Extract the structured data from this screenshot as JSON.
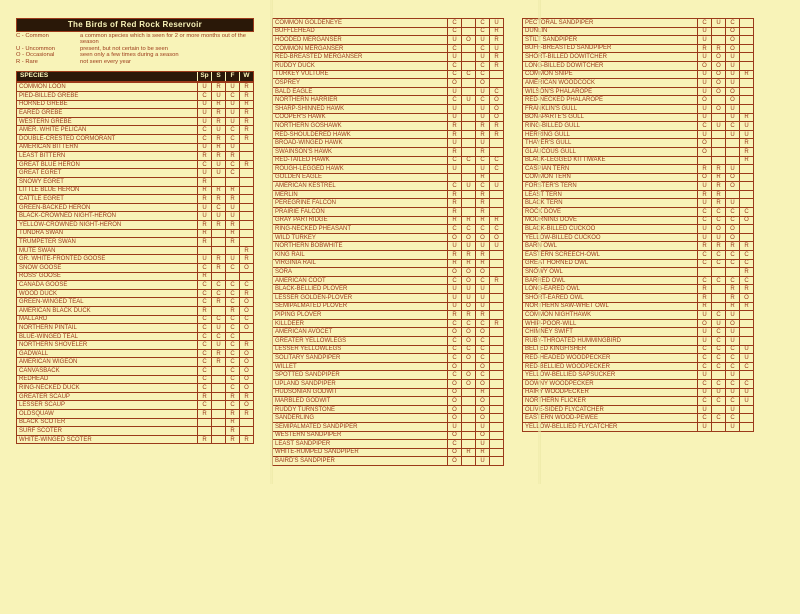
{
  "title": "The Birds of Red Rock Reservoir",
  "legend": [
    {
      "key": "C - Common",
      "def": "a common species which is seen for 2 or more months out of the season"
    },
    {
      "key": "U - Uncommon",
      "def": "present, but not certain to be seen"
    },
    {
      "key": "O - Occasional",
      "def": "seen only a few times during a season"
    },
    {
      "key": "R - Rare",
      "def": "not seen every year"
    }
  ],
  "headers": [
    "SPECIES",
    "Sp",
    "S",
    "F",
    "W"
  ],
  "col1": [
    [
      "COMMON LOON",
      "U",
      "R",
      "U",
      "R"
    ],
    [
      "PIED-BILLED GREBE",
      "C",
      "U",
      "C",
      "R"
    ],
    [
      "HORNED GREBE",
      "U",
      "R",
      "U",
      "R"
    ],
    [
      "EARED GREBE",
      "U",
      "R",
      "U",
      "R"
    ],
    [
      "WESTERN GREBE",
      "U",
      "R",
      "U",
      "R"
    ],
    [
      "AMER. WHITE PELICAN",
      "C",
      "U",
      "C",
      "R"
    ],
    [
      "DOUBLE-CRESTED CORMORANT",
      "C",
      "R",
      "C",
      "R"
    ],
    [
      "AMERICAN BITTERN",
      "U",
      "R",
      "U",
      ""
    ],
    [
      "LEAST BITTERN",
      "R",
      "R",
      "R",
      ""
    ],
    [
      "GREAT BLUE HERON",
      "C",
      "U",
      "C",
      "R"
    ],
    [
      "GREAT EGRET",
      "U",
      "U",
      "C",
      ""
    ],
    [
      "SNOWY EGRET",
      "R",
      "",
      "",
      ""
    ],
    [
      "LITTLE BLUE HERON",
      "R",
      "R",
      "R",
      ""
    ],
    [
      "CATTLE EGRET",
      "R",
      "R",
      "R",
      ""
    ],
    [
      "GREEN-BACKED HERON",
      "U",
      "C",
      "U",
      ""
    ],
    [
      "BLACK-CROWNED NIGHT-HERON",
      "U",
      "U",
      "U",
      ""
    ],
    [
      "YELLOW-CROWNED NIGHT-HERON",
      "R",
      "R",
      "R",
      ""
    ],
    [
      "TUNDRA SWAN",
      "R",
      "",
      "R",
      ""
    ],
    [
      "TRUMPETER SWAN",
      "R",
      "",
      "R",
      ""
    ],
    [
      "MUTE SWAN",
      "",
      "",
      "",
      "R"
    ],
    [
      "GR. WHITE-FRONTED GOOSE",
      "U",
      "R",
      "U",
      "R"
    ],
    [
      "SNOW GOOSE",
      "C",
      "R",
      "C",
      "O"
    ],
    [
      "ROSS' GOOSE",
      "R",
      "",
      "",
      ""
    ],
    [
      "CANADA GOOSE",
      "C",
      "C",
      "C",
      "C"
    ],
    [
      "WOOD DUCK",
      "C",
      "C",
      "C",
      "R"
    ],
    [
      "GREEN-WINGED TEAL",
      "C",
      "R",
      "C",
      "O"
    ],
    [
      "AMERICAN BLACK DUCK",
      "R",
      "",
      "R",
      "O"
    ],
    [
      "MALLARD",
      "C",
      "C",
      "C",
      "C"
    ],
    [
      "NORTHERN PINTAIL",
      "C",
      "U",
      "C",
      "O"
    ],
    [
      "BLUE-WINGED TEAL",
      "C",
      "C",
      "C",
      ""
    ],
    [
      "NORTHERN SHOVELER",
      "C",
      "U",
      "C",
      "R"
    ],
    [
      "GADWALL",
      "C",
      "R",
      "C",
      "O"
    ],
    [
      "AMERICAN WIGEON",
      "C",
      "R",
      "C",
      "O"
    ],
    [
      "CANVASBACK",
      "C",
      "",
      "C",
      "O"
    ],
    [
      "REDHEAD",
      "C",
      "",
      "C",
      "O"
    ],
    [
      "RING-NECKED DUCK",
      "C",
      "",
      "C",
      "O"
    ],
    [
      "GREATER SCAUP",
      "R",
      "",
      "R",
      "R"
    ],
    [
      "LESSER SCAUP",
      "C",
      "",
      "C",
      "O"
    ],
    [
      "OLDSQUAW",
      "R",
      "",
      "R",
      "R"
    ],
    [
      "BLACK SCOTER",
      "",
      "",
      "R",
      ""
    ],
    [
      "SURF SCOTER",
      "",
      "",
      "R",
      ""
    ],
    [
      "WHITE-WINGED SCOTER",
      "R",
      "",
      "R",
      "R"
    ]
  ],
  "col2": [
    [
      "COMMON GOLDENEYE",
      "C",
      "",
      "C",
      "U"
    ],
    [
      "BUFFLEHEAD",
      "C",
      "",
      "C",
      "R"
    ],
    [
      "HOODED MERGANSER",
      "U",
      "O",
      "U",
      "R"
    ],
    [
      "COMMON MERGANSER",
      "C",
      "",
      "C",
      "U"
    ],
    [
      "RED-BREASTED MERGANSER",
      "U",
      "",
      "U",
      "R"
    ],
    [
      "RUDDY DUCK",
      "C",
      "",
      "C",
      "R"
    ],
    [
      "TURKEY VULTURE",
      "C",
      "C",
      "C",
      ""
    ],
    [
      "OSPREY",
      "O",
      "",
      "O",
      ""
    ],
    [
      "BALD EAGLE",
      "U",
      "",
      "U",
      "C"
    ],
    [
      "NORTHERN HARRIER",
      "C",
      "U",
      "C",
      "O"
    ],
    [
      "SHARP-SHINNED HAWK",
      "U",
      "",
      "U",
      "O"
    ],
    [
      "COOPER'S HAWK",
      "U",
      "",
      "U",
      "O"
    ],
    [
      "NORTHERN GOSHAWK",
      "R",
      "",
      "R",
      "R"
    ],
    [
      "RED-SHOULDERED HAWK",
      "R",
      "",
      "R",
      "R"
    ],
    [
      "BROAD-WINGED HAWK",
      "U",
      "",
      "U",
      ""
    ],
    [
      "SWAINSON'S HAWK",
      "R",
      "",
      "R",
      ""
    ],
    [
      "RED-TAILED HAWK",
      "C",
      "C",
      "C",
      "C"
    ],
    [
      "ROUGH-LEGGED HAWK",
      "U",
      "",
      "U",
      "C"
    ],
    [
      "GOLDEN EAGLE",
      "",
      "",
      "R",
      ""
    ],
    [
      "AMERICAN KESTREL",
      "C",
      "U",
      "C",
      "U"
    ],
    [
      "MERLIN",
      "R",
      "",
      "R",
      ""
    ],
    [
      "PEREGRINE FALCON",
      "R",
      "",
      "R",
      ""
    ],
    [
      "PRAIRIE FALCON",
      "R",
      "",
      "R",
      ""
    ],
    [
      "GRAY PARTRIDGE",
      "R",
      "R",
      "R",
      "R"
    ],
    [
      "RING-NECKED PHEASANT",
      "C",
      "C",
      "C",
      "C"
    ],
    [
      "WILD TURKEY",
      "O",
      "O",
      "O",
      "O"
    ],
    [
      "NORTHERN BOBWHITE",
      "U",
      "U",
      "U",
      "U"
    ],
    [
      "KING RAIL",
      "R",
      "R",
      "R",
      ""
    ],
    [
      "VIRGINIA RAIL",
      "R",
      "R",
      "R",
      ""
    ],
    [
      "SORA",
      "O",
      "O",
      "O",
      ""
    ],
    [
      "AMERICAN COOT",
      "C",
      "O",
      "C",
      "R"
    ],
    [
      "BLACK-BELLIED PLOVER",
      "U",
      "U",
      "U",
      ""
    ],
    [
      "LESSER GOLDEN-PLOVER",
      "U",
      "U",
      "U",
      ""
    ],
    [
      "SEMIPALMATED PLOVER",
      "U",
      "O",
      "U",
      ""
    ],
    [
      "PIPING PLOVER",
      "R",
      "R",
      "R",
      ""
    ],
    [
      "KILLDEER",
      "C",
      "C",
      "C",
      "R"
    ],
    [
      "AMERICAN AVOCET",
      "O",
      "O",
      "O",
      ""
    ],
    [
      "GREATER YELLOWLEGS",
      "C",
      "O",
      "C",
      ""
    ],
    [
      "LESSER YELLOWLEGS",
      "C",
      "C",
      "C",
      ""
    ],
    [
      "SOLITARY SANDPIPER",
      "C",
      "O",
      "C",
      ""
    ],
    [
      "WILLET",
      "O",
      "",
      "O",
      ""
    ],
    [
      "SPOTTED SANDPIPER",
      "C",
      "O",
      "C",
      ""
    ],
    [
      "UPLAND SANDPIPER",
      "O",
      "O",
      "O",
      ""
    ],
    [
      "HUDSONIAN GODWIT",
      "O",
      "",
      "R",
      ""
    ],
    [
      "MARBLED GODWIT",
      "O",
      "",
      "O",
      ""
    ],
    [
      "RUDDY TURNSTONE",
      "O",
      "",
      "O",
      ""
    ],
    [
      "SANDERLING",
      "O",
      "",
      "O",
      ""
    ],
    [
      "SEMIPALMATED SANDPIPER",
      "U",
      "",
      "U",
      ""
    ],
    [
      "WESTERN SANDPIPER",
      "O",
      "",
      "O",
      ""
    ],
    [
      "LEAST SANDPIPER",
      "C",
      "",
      "U",
      ""
    ],
    [
      "WHITE-RUMPED SANDPIPER",
      "O",
      "R",
      "R",
      ""
    ],
    [
      "BAIRD'S SANDPIPER",
      "O",
      "",
      "U",
      ""
    ]
  ],
  "col3": [
    [
      "PECTORAL SANDPIPER",
      "C",
      "U",
      "C",
      ""
    ],
    [
      "DUNLIN",
      "U",
      "",
      "O",
      ""
    ],
    [
      "STILT SANDPIPER",
      "U",
      "",
      "O",
      ""
    ],
    [
      "BUFF-BREASTED SANDPIPER",
      "R",
      "R",
      "O",
      ""
    ],
    [
      "SHORT-BILLED DOWITCHER",
      "U",
      "O",
      "U",
      ""
    ],
    [
      "LONG-BILLED DOWITCHER",
      "O",
      "O",
      "U",
      ""
    ],
    [
      "COMMON SNIPE",
      "U",
      "O",
      "U",
      "R"
    ],
    [
      "AMERICAN WOODCOCK",
      "U",
      "O",
      "U",
      ""
    ],
    [
      "WILSON'S PHALAROPE",
      "U",
      "O",
      "O",
      ""
    ],
    [
      "RED-NECKED PHALAROPE",
      "O",
      "",
      "O",
      ""
    ],
    [
      "FRANKLIN'S GULL",
      "U",
      "O",
      "U",
      ""
    ],
    [
      "BONAPARTE'S GULL",
      "U",
      "",
      "U",
      "R"
    ],
    [
      "RING-BILLED GULL",
      "C",
      "U",
      "C",
      "U"
    ],
    [
      "HERRING GULL",
      "U",
      "",
      "U",
      "U"
    ],
    [
      "THAYER'S GULL",
      "O",
      "",
      "",
      "R"
    ],
    [
      "GLAUCOUS GULL",
      "O",
      "",
      "",
      "R"
    ],
    [
      "BLACK-LEGGED KITTIWAKE",
      "",
      "",
      "",
      "R"
    ],
    [
      "CASPIAN TERN",
      "R",
      "R",
      "U",
      ""
    ],
    [
      "COMMON TERN",
      "O",
      "R",
      "O",
      ""
    ],
    [
      "FORSTER'S TERN",
      "U",
      "R",
      "O",
      ""
    ],
    [
      "LEAST TERN",
      "R",
      "R",
      "",
      ""
    ],
    [
      "BLACK TERN",
      "U",
      "R",
      "U",
      ""
    ],
    [
      "ROCK DOVE",
      "C",
      "C",
      "C",
      "C"
    ],
    [
      "MOURNING DOVE",
      "C",
      "C",
      "C",
      "O"
    ],
    [
      "BLACK-BILLED CUCKOO",
      "U",
      "O",
      "O",
      ""
    ],
    [
      "YELLOW-BILLED CUCKOO",
      "U",
      "U",
      "O",
      ""
    ],
    [
      "BARN OWL",
      "R",
      "R",
      "R",
      "R"
    ],
    [
      "EASTERN SCREECH-OWL",
      "C",
      "C",
      "C",
      "C"
    ],
    [
      "GREAT HORNED OWL",
      "C",
      "C",
      "C",
      "C"
    ],
    [
      "SNOWY OWL",
      "",
      "",
      "",
      "R"
    ],
    [
      "BARRED OWL",
      "C",
      "C",
      "C",
      "C"
    ],
    [
      "LONG-EARED OWL",
      "R",
      "",
      "R",
      "R"
    ],
    [
      "SHORT-EARED OWL",
      "R",
      "",
      "R",
      "O"
    ],
    [
      "NORTHERN SAW-WHET OWL",
      "R",
      "",
      "R",
      "R"
    ],
    [
      "COMMON NIGHTHAWK",
      "U",
      "C",
      "U",
      ""
    ],
    [
      "WHIP-POOR-WILL",
      "O",
      "U",
      "O",
      ""
    ],
    [
      "CHIMNEY SWIFT",
      "U",
      "C",
      "U",
      ""
    ],
    [
      "RUBY-THROATED HUMMINGBIRD",
      "U",
      "C",
      "U",
      ""
    ],
    [
      "BELTED KINGFISHER",
      "C",
      "C",
      "C",
      "U"
    ],
    [
      "RED-HEADED WOODPECKER",
      "C",
      "C",
      "C",
      "U"
    ],
    [
      "RED-BELLIED WOODPECKER",
      "C",
      "C",
      "C",
      "C"
    ],
    [
      "YELLOW-BELLIED SAPSUCKER",
      "U",
      "",
      "U",
      ""
    ],
    [
      "DOWNY WOODPECKER",
      "C",
      "C",
      "C",
      "C"
    ],
    [
      "HAIRY WOODPECKER",
      "U",
      "U",
      "U",
      "U"
    ],
    [
      "NORTHERN FLICKER",
      "C",
      "C",
      "C",
      "U"
    ],
    [
      "OLIVE-SIDED FLYCATCHER",
      "U",
      "",
      "U",
      ""
    ],
    [
      "EASTERN WOOD-PEWEE",
      "C",
      "C",
      "C",
      ""
    ],
    [
      "YELLOW-BELLIED FLYCATCHER",
      "U",
      "",
      "U",
      ""
    ]
  ]
}
